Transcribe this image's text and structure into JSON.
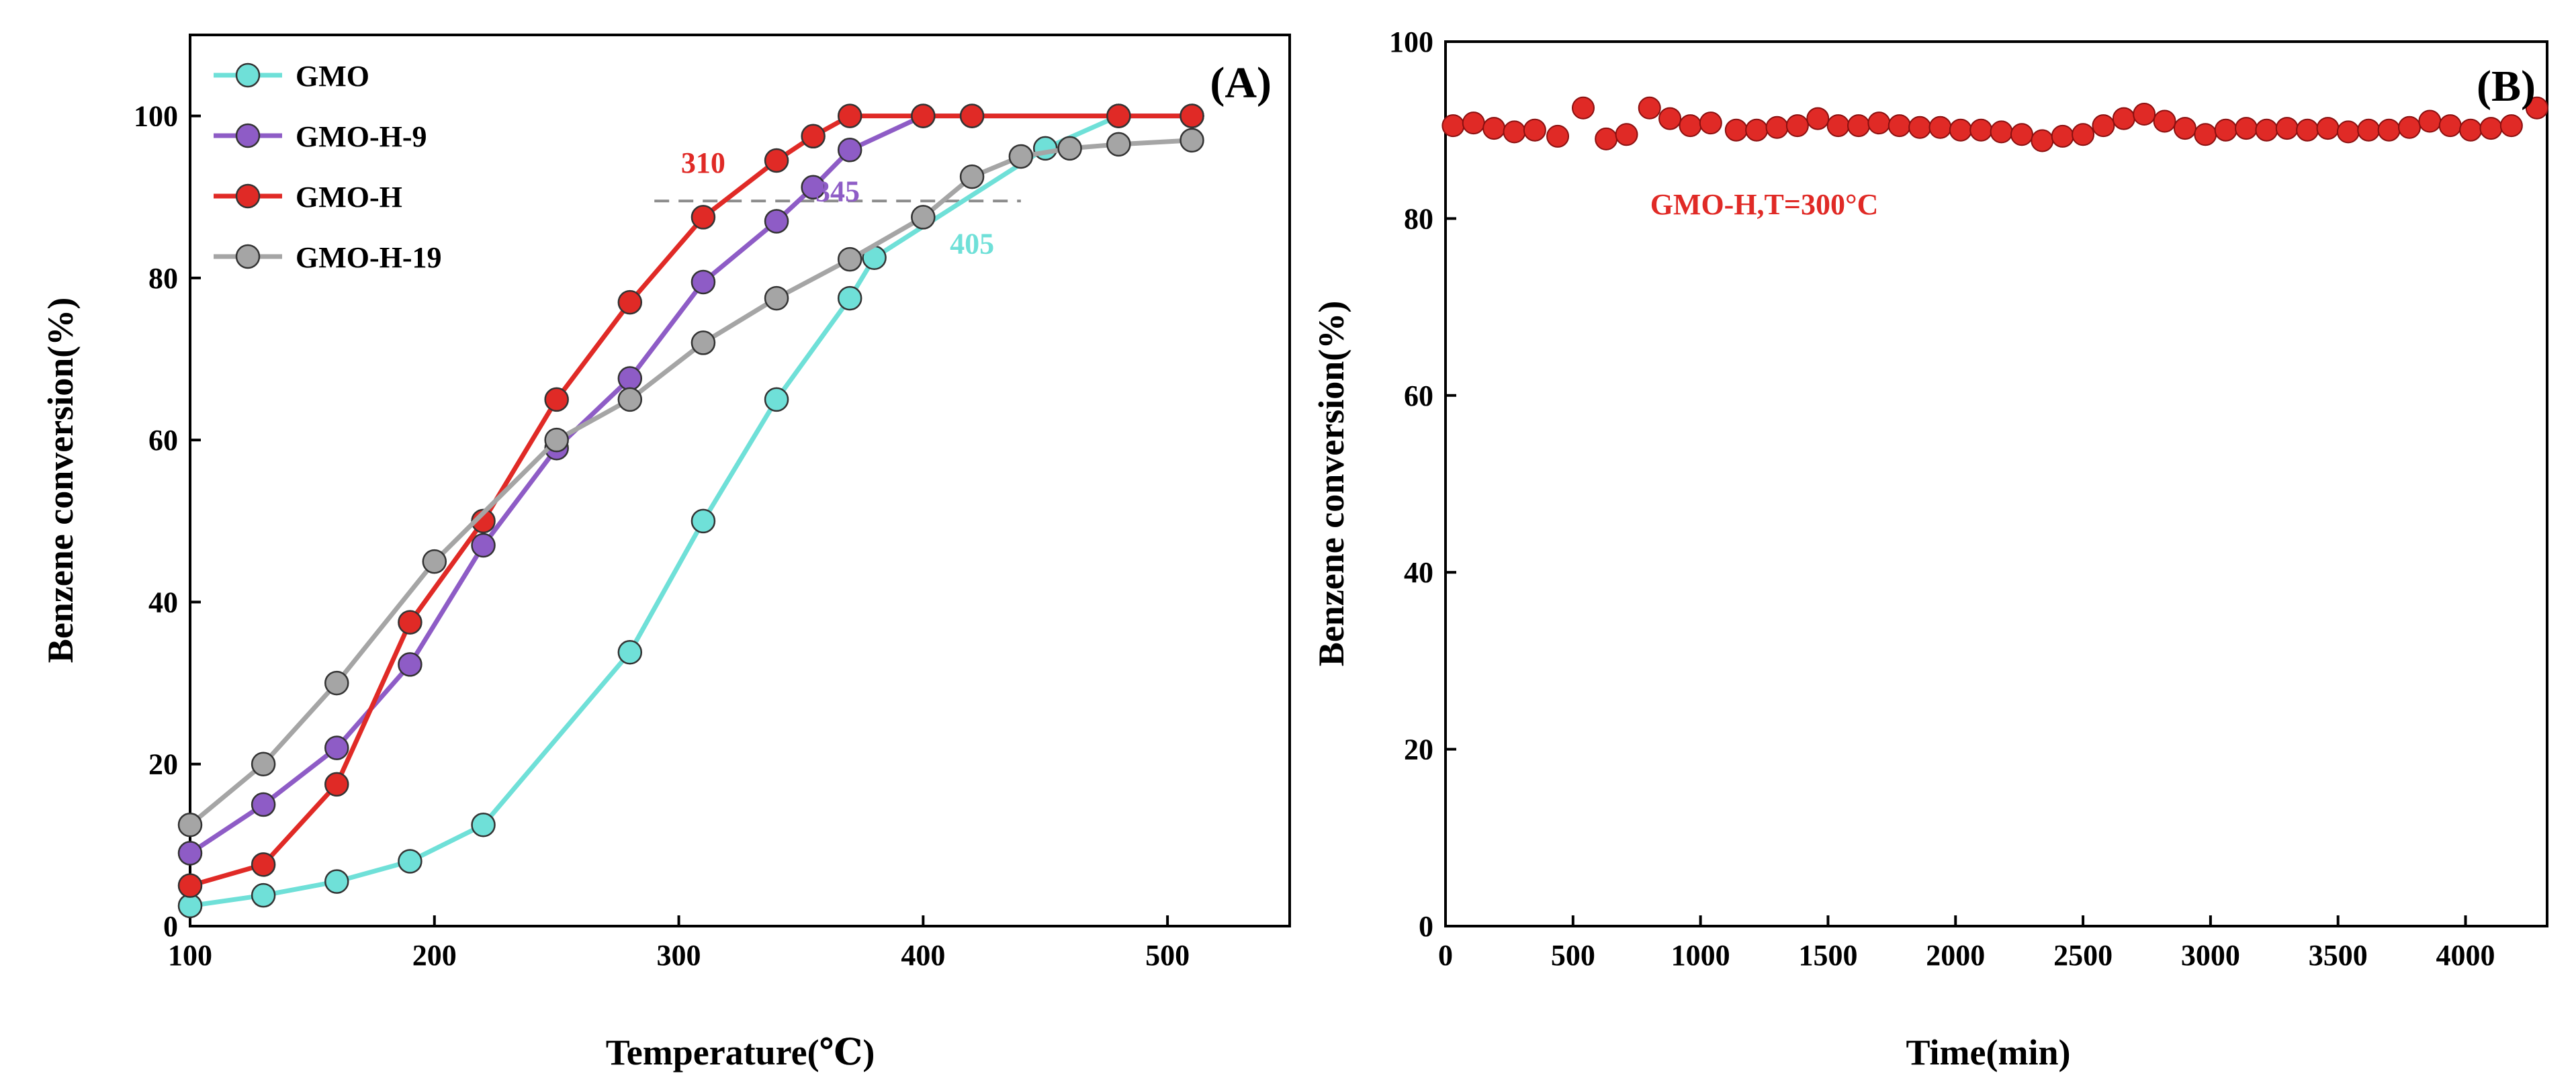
{
  "chart_data": [
    {
      "type": "line",
      "panel_label": "(A)",
      "title": "",
      "xlabel": "Temperature(℃)",
      "ylabel": "Benzene conversion(%)",
      "xlim": [
        100,
        550
      ],
      "ylim": [
        0,
        110
      ],
      "xticks": [
        100,
        200,
        300,
        400,
        500
      ],
      "yticks": [
        0,
        20,
        40,
        60,
        80,
        100
      ],
      "legend_position": "top-left",
      "series": [
        {
          "name": "GMO",
          "color": "#6fe0d8",
          "x": [
            100,
            130,
            160,
            190,
            220,
            280,
            310,
            340,
            370,
            380,
            450,
            480,
            510
          ],
          "y": [
            2.5,
            3.8,
            5.5,
            8,
            12.5,
            33.8,
            50,
            65,
            77.5,
            82.5,
            96,
            100,
            100
          ]
        },
        {
          "name": "GMO-H-9",
          "color": "#8e5cc6",
          "x": [
            100,
            130,
            160,
            190,
            220,
            250,
            280,
            310,
            340,
            355,
            370,
            400,
            420,
            480,
            510
          ],
          "y": [
            9,
            15,
            22,
            32.3,
            47,
            59,
            67.6,
            79.5,
            87,
            91.2,
            95.8,
            100,
            100,
            100,
            100
          ]
        },
        {
          "name": "GMO-H",
          "color": "#e02a26",
          "x": [
            100,
            130,
            160,
            190,
            220,
            250,
            280,
            310,
            340,
            355,
            370,
            400,
            420,
            480,
            510
          ],
          "y": [
            5,
            7.6,
            17.5,
            37.5,
            50,
            65,
            77,
            87.5,
            94.5,
            97.5,
            100,
            100,
            100,
            100,
            100
          ]
        },
        {
          "name": "GMO-H-19",
          "color": "#a5a5a5",
          "x": [
            100,
            130,
            160,
            200,
            250,
            280,
            310,
            340,
            370,
            400,
            420,
            440,
            460,
            480,
            510
          ],
          "y": [
            12.5,
            20,
            30,
            45,
            60,
            65,
            72,
            77.5,
            82.3,
            87.5,
            92.5,
            95,
            96,
            96.5,
            97
          ]
        }
      ],
      "reference_line": {
        "y": 89.5,
        "x_from": 290,
        "x_to": 440,
        "color": "#8c8c8c"
      },
      "annotations": [
        {
          "text": "310",
          "x": 310,
          "y": 93,
          "color": "#e02a26"
        },
        {
          "text": "345",
          "x": 365,
          "y": 89.5,
          "color": "#8e5cc6"
        },
        {
          "text": "405",
          "x": 420,
          "y": 83,
          "color": "#6fe0d8"
        }
      ]
    },
    {
      "type": "scatter",
      "panel_label": "(B)",
      "title": "",
      "xlabel": "Time(min)",
      "ylabel": "Benzene conversion(%)",
      "xlim": [
        0,
        4320
      ],
      "ylim": [
        0,
        100
      ],
      "xticks": [
        0,
        500,
        1000,
        1500,
        2000,
        2500,
        3000,
        3500,
        4000
      ],
      "yticks": [
        0,
        20,
        40,
        60,
        80,
        100
      ],
      "series": [
        {
          "name": "GMO-H,T=300°C",
          "color": "#e02a26",
          "x": [
            30,
            110,
            190,
            270,
            350,
            440,
            540,
            630,
            710,
            800,
            880,
            960,
            1040,
            1140,
            1220,
            1300,
            1380,
            1460,
            1540,
            1620,
            1700,
            1780,
            1860,
            1940,
            2020,
            2100,
            2180,
            2260,
            2340,
            2420,
            2500,
            2580,
            2660,
            2740,
            2820,
            2900,
            2980,
            3060,
            3140,
            3220,
            3300,
            3380,
            3460,
            3540,
            3620,
            3700,
            3780,
            3860,
            3940,
            4020,
            4100,
            4180,
            4280
          ],
          "y": [
            90.5,
            90.8,
            90.2,
            89.8,
            90,
            89.3,
            92.5,
            89,
            89.5,
            92.5,
            91.3,
            90.5,
            90.8,
            90,
            90,
            90.3,
            90.5,
            91.3,
            90.5,
            90.5,
            90.8,
            90.5,
            90.3,
            90.3,
            90,
            90,
            89.8,
            89.5,
            88.8,
            89.3,
            89.5,
            90.5,
            91.3,
            91.8,
            91,
            90.2,
            89.5,
            90,
            90.2,
            90,
            90.2,
            90,
            90.2,
            89.8,
            90,
            90,
            90.3,
            91,
            90.5,
            90,
            90.2,
            90.5,
            92.5
          ]
        }
      ],
      "annotations": [
        {
          "text": "GMO-H,T=300°C",
          "x": 1250,
          "y": 80.5,
          "color": "#e02a26"
        }
      ]
    }
  ]
}
